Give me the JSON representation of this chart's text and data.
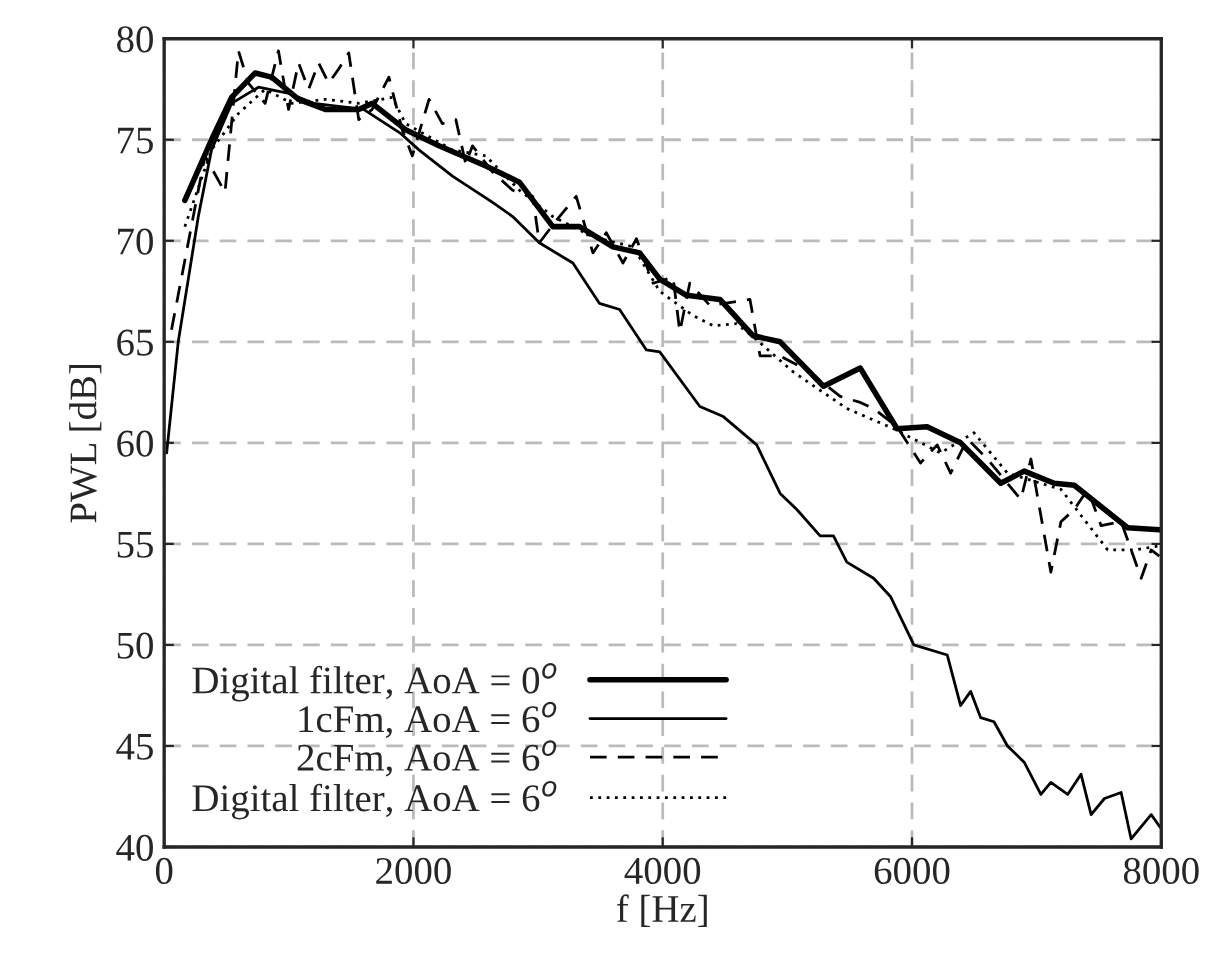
{
  "chart_data": {
    "type": "line",
    "xlabel": "f [Hz]",
    "ylabel": "PWL [dB]",
    "xlim": [
      0,
      8000
    ],
    "ylim": [
      40,
      80
    ],
    "xticks": [
      0,
      2000,
      4000,
      6000,
      8000
    ],
    "yticks": [
      40,
      45,
      50,
      55,
      60,
      65,
      70,
      75,
      80
    ],
    "grid": true,
    "legend": "bottom left",
    "series": [
      {
        "name": "Digital filter, AoA = 0$^{o}$",
        "color": "#000000",
        "line_style": "solid",
        "x": [
          166,
          380,
          541,
          729,
          863,
          1078,
          1293,
          1561,
          1669,
          1937,
          2205,
          2581,
          2850,
          3118,
          3333,
          3601,
          3815,
          3976,
          4190,
          4459,
          4726,
          4942,
          5290,
          5585,
          5880,
          6121,
          6390,
          6712,
          6900,
          7141,
          7302,
          7730,
          7984
        ],
        "values": [
          72.0,
          75.0,
          77.1,
          78.3,
          78.1,
          77.0,
          76.5,
          76.5,
          76.8,
          75.5,
          74.7,
          73.7,
          72.9,
          70.7,
          70.7,
          69.7,
          69.4,
          68.1,
          67.3,
          67.1,
          65.3,
          65.0,
          62.8,
          63.7,
          60.7,
          60.8,
          60.0,
          58.0,
          58.6,
          58.0,
          57.9,
          55.8,
          55.7
        ]
      },
      {
        "name": "1cFm, AoA = 6$^{o}$",
        "color": "#000000",
        "line_style": "solid",
        "x": [
          20,
          113,
          274,
          380,
          541,
          757,
          1000,
          1200,
          1600,
          1900,
          2044,
          2313,
          2635,
          2796,
          3010,
          3279,
          3493,
          3654,
          3869,
          3976,
          4298,
          4486,
          4754,
          4942,
          5076,
          5263,
          5370,
          5477,
          5692,
          5827,
          6015,
          6283,
          6390,
          6471,
          6551,
          6658,
          6766,
          6900,
          7034,
          7114,
          7249,
          7356,
          7437,
          7544,
          7678,
          7758,
          7919,
          8000
        ],
        "values": [
          59.5,
          65.0,
          71.2,
          74.5,
          76.8,
          77.6,
          77.3,
          76.8,
          76.5,
          75.3,
          74.5,
          73.2,
          71.9,
          71.2,
          69.9,
          68.9,
          66.9,
          66.6,
          64.6,
          64.5,
          61.8,
          61.3,
          59.9,
          57.5,
          56.7,
          55.4,
          55.4,
          54.1,
          53.3,
          52.4,
          50.0,
          49.5,
          47.0,
          47.7,
          46.4,
          46.2,
          45.0,
          44.2,
          42.6,
          43.2,
          42.6,
          43.6,
          41.6,
          42.4,
          42.7,
          40.4,
          41.6,
          40.9
        ]
      },
      {
        "name": "2cFm, AoA = 6$^{o}$",
        "color": "#000000",
        "line_style": "dashed",
        "x": [
          59,
          327,
          488,
          596,
          676,
          810,
          917,
          998,
          1078,
          1159,
          1239,
          1320,
          1400,
          1481,
          1561,
          1669,
          1803,
          1910,
          1991,
          2125,
          2232,
          2340,
          2420,
          2474,
          2635,
          2796,
          2957,
          3010,
          3145,
          3306,
          3440,
          3547,
          3681,
          3789,
          3923,
          4083,
          4137,
          4217,
          4378,
          4700,
          4781,
          4942,
          5156,
          5424,
          5585,
          5692,
          5880,
          6068,
          6202,
          6310,
          6444,
          6605,
          6873,
          6954,
          7114,
          7195,
          7302,
          7410,
          7517,
          7678,
          7839,
          7919,
          7984
        ],
        "values": [
          65.6,
          74.2,
          72.4,
          79.4,
          77.8,
          76.8,
          79.4,
          76.5,
          78.8,
          77.5,
          78.8,
          77.8,
          78.5,
          79.3,
          76.0,
          76.5,
          78.1,
          75.5,
          74.2,
          77.0,
          75.8,
          76.0,
          73.8,
          74.7,
          73.4,
          72.5,
          72.2,
          69.9,
          71.0,
          72.2,
          69.4,
          70.4,
          68.9,
          70.1,
          67.9,
          68.2,
          65.5,
          67.9,
          66.8,
          67.1,
          64.3,
          64.3,
          63.6,
          62.3,
          62.0,
          61.7,
          60.8,
          59.0,
          59.9,
          58.5,
          60.2,
          59.2,
          57.2,
          59.2,
          53.6,
          56.1,
          56.7,
          57.7,
          55.9,
          56.1,
          53.3,
          54.7,
          54.4
        ]
      },
      {
        "name": "Digital filter, AoA = 6$^{o}$",
        "color": "#000000",
        "line_style": "dotted",
        "x": [
          166,
          380,
          596,
          810,
          1024,
          1293,
          1561,
          1830,
          1937,
          2313,
          2581,
          2850,
          3118,
          3440,
          3762,
          3976,
          4244,
          4405,
          4593,
          4754,
          5049,
          5477,
          5853,
          6229,
          6497,
          6766,
          7195,
          7570,
          7785,
          7984
        ],
        "values": [
          70.7,
          74.5,
          76.3,
          77.5,
          76.8,
          77.0,
          76.8,
          77.1,
          75.8,
          74.5,
          74.2,
          72.5,
          71.2,
          70.2,
          69.7,
          67.5,
          66.3,
          65.8,
          65.9,
          65.1,
          63.5,
          61.7,
          60.7,
          59.5,
          60.5,
          58.5,
          57.7,
          54.7,
          54.7,
          54.9
        ]
      }
    ]
  }
}
